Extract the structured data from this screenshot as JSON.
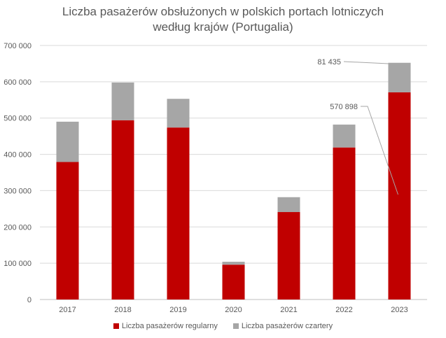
{
  "chart_data": {
    "type": "bar",
    "stacked": true,
    "title_line1": "Liczba pasażerów obsłużonych  w polskich portach lotniczych",
    "title_line2": "według krajów (Portugalia)",
    "categories": [
      "2017",
      "2018",
      "2019",
      "2020",
      "2021",
      "2022",
      "2023"
    ],
    "series": [
      {
        "name": "Liczba pasażerów regularny",
        "color": "#C00000",
        "values": [
          379000,
          494000,
          474000,
          96000,
          241000,
          419000,
          570898
        ]
      },
      {
        "name": "Liczba pasażerów czartery",
        "color": "#A6A6A6",
        "values": [
          111000,
          104000,
          79000,
          8000,
          41000,
          63000,
          81435
        ]
      }
    ],
    "ylim": [
      0,
      700000
    ],
    "yticks": [
      "0",
      "100 000",
      "200 000",
      "300 000",
      "400 000",
      "500 000",
      "600 000",
      "700 000"
    ],
    "grid": true,
    "legend_position": "bottom",
    "annotations": [
      {
        "text": "81 435",
        "category": "2023",
        "series": 1
      },
      {
        "text": "570 898",
        "category": "2023",
        "series": 0
      }
    ]
  }
}
